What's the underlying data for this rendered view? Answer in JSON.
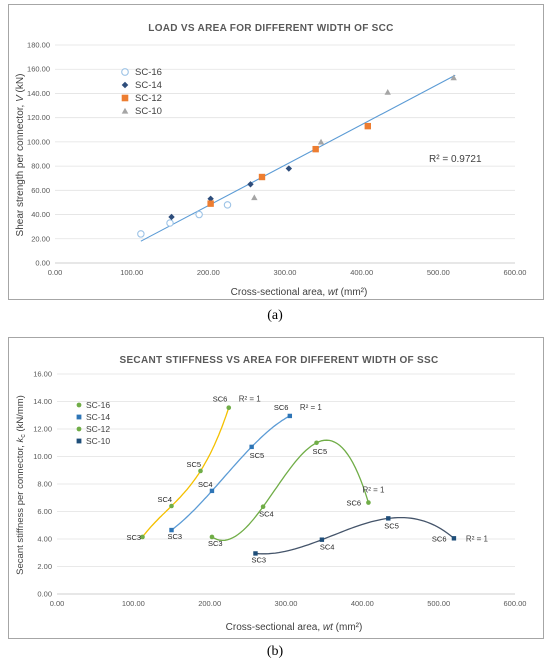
{
  "captions": {
    "a": "(a)",
    "b": "(b)"
  },
  "chart_data": [
    {
      "type": "scatter",
      "title": "LOAD VS AREA FOR DIFFERENT WIDTH OF SCC",
      "xlabel": "Cross-sectional area, wt (mm²)",
      "ylabel": "Shear strength per connector, V (kN)",
      "xlim": [
        0,
        600
      ],
      "ylim": [
        0,
        180
      ],
      "xticks": [
        "0.00",
        "100.00",
        "200.00",
        "300.00",
        "400.00",
        "500.00",
        "600.00"
      ],
      "yticks": [
        "0.00",
        "20.00",
        "40.00",
        "60.00",
        "80.00",
        "100.00",
        "120.00",
        "140.00",
        "160.00",
        "180.00"
      ],
      "grid": "horizontal",
      "legend_position": "upper-left",
      "series": [
        {
          "name": "SC-16",
          "marker": "circle-open",
          "color": "#9dc3e6",
          "points": [
            [
              112,
              24
            ],
            [
              150,
              33
            ],
            [
              188,
              40
            ],
            [
              225,
              48
            ]
          ]
        },
        {
          "name": "SC-14",
          "marker": "diamond",
          "color": "#2e4d7b",
          "points": [
            [
              152,
              38
            ],
            [
              203,
              53
            ],
            [
              255,
              65
            ],
            [
              305,
              78
            ]
          ]
        },
        {
          "name": "SC-12",
          "marker": "square",
          "color": "#ed7d31",
          "points": [
            [
              203,
              49
            ],
            [
              270,
              71
            ],
            [
              340,
              94
            ],
            [
              408,
              113
            ]
          ]
        },
        {
          "name": "SC-10",
          "marker": "triangle",
          "color": "#a5a5a5",
          "points": [
            [
              260,
              54
            ],
            [
              347,
              100
            ],
            [
              434,
              141
            ],
            [
              520,
              153
            ]
          ]
        }
      ],
      "trendline": {
        "color": "#5b9bd5",
        "from": [
          112,
          18
        ],
        "to": [
          522,
          155
        ]
      },
      "annotations": [
        {
          "text": "R² = 0.9721"
        }
      ]
    },
    {
      "type": "line",
      "title": "SECANT STIFFNESS VS AREA FOR DIFFERENT WIDTH OF SSC",
      "xlabel": "Cross-sectional area, wt (mm²)",
      "ylabel": "Secant stiffness per connector, kc (kN/mm)",
      "xlim": [
        0,
        600
      ],
      "ylim": [
        0,
        16
      ],
      "xticks": [
        "0.00",
        "100.00",
        "200.00",
        "300.00",
        "400.00",
        "500.00",
        "600.00"
      ],
      "yticks": [
        "0.00",
        "2.00",
        "4.00",
        "6.00",
        "8.00",
        "10.00",
        "12.00",
        "14.00",
        "16.00"
      ],
      "grid": "horizontal",
      "legend_position": "upper-left",
      "series": [
        {
          "name": "SC-16",
          "color": "#f4c000",
          "marker_color": "#70ad47",
          "r2": "R² = 1",
          "points": [
            [
              112,
              4.15
            ],
            [
              150,
              6.4
            ],
            [
              188,
              8.95
            ],
            [
              225,
              13.55
            ]
          ],
          "labels": [
            "SC3",
            "SC4",
            "SC5",
            "SC6"
          ]
        },
        {
          "name": "SC-14",
          "color": "#5b9bd5",
          "marker_color": "#2e75b6",
          "r2": "R² = 1",
          "points": [
            [
              150,
              4.65
            ],
            [
              203,
              7.5
            ],
            [
              255,
              10.7
            ],
            [
              305,
              12.95
            ]
          ],
          "labels": [
            "SC3",
            "SC4",
            "SC5",
            "SC6"
          ]
        },
        {
          "name": "SC-12",
          "color": "#70ad47",
          "marker_color": "#70ad47",
          "r2": "R² = 1",
          "points": [
            [
              203,
              4.15
            ],
            [
              270,
              6.35
            ],
            [
              340,
              11.0
            ],
            [
              408,
              6.65
            ]
          ],
          "labels": [
            "SC3",
            "SC4",
            "SC5",
            "SC6"
          ]
        },
        {
          "name": "SC-10",
          "color": "#44546a",
          "marker_color": "#1f4e79",
          "r2": "R² = 1",
          "points": [
            [
              260,
              2.95
            ],
            [
              347,
              3.95
            ],
            [
              434,
              5.5
            ],
            [
              520,
              4.05
            ]
          ],
          "labels": [
            "SC3",
            "SC4",
            "SC5",
            "SC6"
          ]
        }
      ]
    }
  ]
}
